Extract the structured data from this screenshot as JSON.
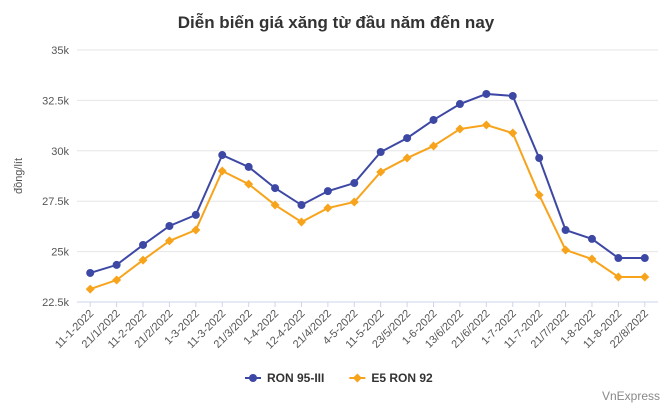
{
  "chart_data": {
    "type": "line",
    "title": "Diễn biến giá xăng từ đầu năm đến nay",
    "y_label": "đồng/lít",
    "credit": "VnExpress",
    "categories": [
      "11-1-2022",
      "21/1/2022",
      "11-2-2022",
      "21/2/2022",
      "1-3-2022",
      "11-3-2022",
      "21/3/2022",
      "1-4-2022",
      "12-4-2022",
      "21/4/2022",
      "4-5-2022",
      "11-5-2022",
      "23/5/2022",
      "1-6-2022",
      "13/6/2022",
      "21/6/2022",
      "1-7-2022",
      "11-7-2022",
      "21/7/2022",
      "1-8-2022",
      "11-8-2022",
      "22/8/2022"
    ],
    "series": [
      {
        "name": "RON 95-III",
        "color": "#3d48a5",
        "marker": "circle",
        "values": [
          23940,
          24340,
          25330,
          26270,
          26820,
          29790,
          29200,
          28150,
          27310,
          28000,
          28400,
          29940,
          30630,
          31530,
          32320,
          32820,
          32720,
          29640,
          26070,
          25630,
          24680,
          24680
        ]
      },
      {
        "name": "E5 RON 92",
        "color": "#f7a41c",
        "marker": "diamond",
        "values": [
          23140,
          23590,
          24580,
          25530,
          26070,
          29000,
          28350,
          27310,
          26470,
          27160,
          27460,
          28950,
          29640,
          30240,
          31080,
          31280,
          30880,
          27810,
          25080,
          24630,
          23740,
          23740
        ]
      }
    ],
    "ylim": [
      22500,
      35000
    ],
    "yticks": [
      {
        "value": 22500,
        "label": "22.5k"
      },
      {
        "value": 25000,
        "label": "25k"
      },
      {
        "value": 27500,
        "label": "27.5k"
      },
      {
        "value": 30000,
        "label": "30k"
      },
      {
        "value": 32500,
        "label": "32.5k"
      },
      {
        "value": 35000,
        "label": "35k"
      }
    ],
    "grid": true
  }
}
